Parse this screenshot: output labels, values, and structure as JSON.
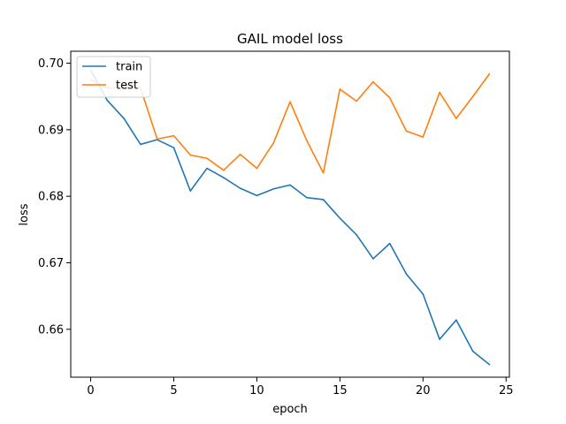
{
  "chart_data": {
    "type": "line",
    "title": "GAIL model loss",
    "xlabel": "epoch",
    "ylabel": "loss",
    "xlim": [
      -1.2,
      25.2
    ],
    "ylim": [
      0.6528,
      0.7018
    ],
    "x_ticks": [
      0,
      5,
      10,
      15,
      20,
      25
    ],
    "y_ticks": [
      0.66,
      0.67,
      0.68,
      0.69,
      0.7
    ],
    "y_tick_labels": [
      "0.66",
      "0.67",
      "0.68",
      "0.69",
      "0.70"
    ],
    "grid": false,
    "legend_position": "upper-left",
    "x": [
      0,
      1,
      2,
      3,
      4,
      5,
      6,
      7,
      8,
      9,
      10,
      11,
      12,
      13,
      14,
      15,
      16,
      17,
      18,
      19,
      20,
      21,
      22,
      23,
      24
    ],
    "series": [
      {
        "name": "train",
        "color": "#1f77b4",
        "values": [
          0.699,
          0.6944,
          0.6917,
          0.6878,
          0.6885,
          0.6873,
          0.6808,
          0.6842,
          0.6828,
          0.6812,
          0.6801,
          0.6811,
          0.6817,
          0.6798,
          0.6795,
          0.6767,
          0.6742,
          0.6706,
          0.6729,
          0.6683,
          0.6653,
          0.6585,
          0.6614,
          0.6567,
          0.6547
        ]
      },
      {
        "name": "test",
        "color": "#ff7f0e",
        "values": [
          0.6975,
          0.6963,
          0.6962,
          0.6963,
          0.6886,
          0.6891,
          0.6862,
          0.6857,
          0.6839,
          0.6863,
          0.6842,
          0.688,
          0.6942,
          0.6884,
          0.6835,
          0.6961,
          0.6943,
          0.6972,
          0.6948,
          0.6898,
          0.6889,
          0.6956,
          0.6917,
          0.695,
          0.6984
        ]
      }
    ]
  }
}
